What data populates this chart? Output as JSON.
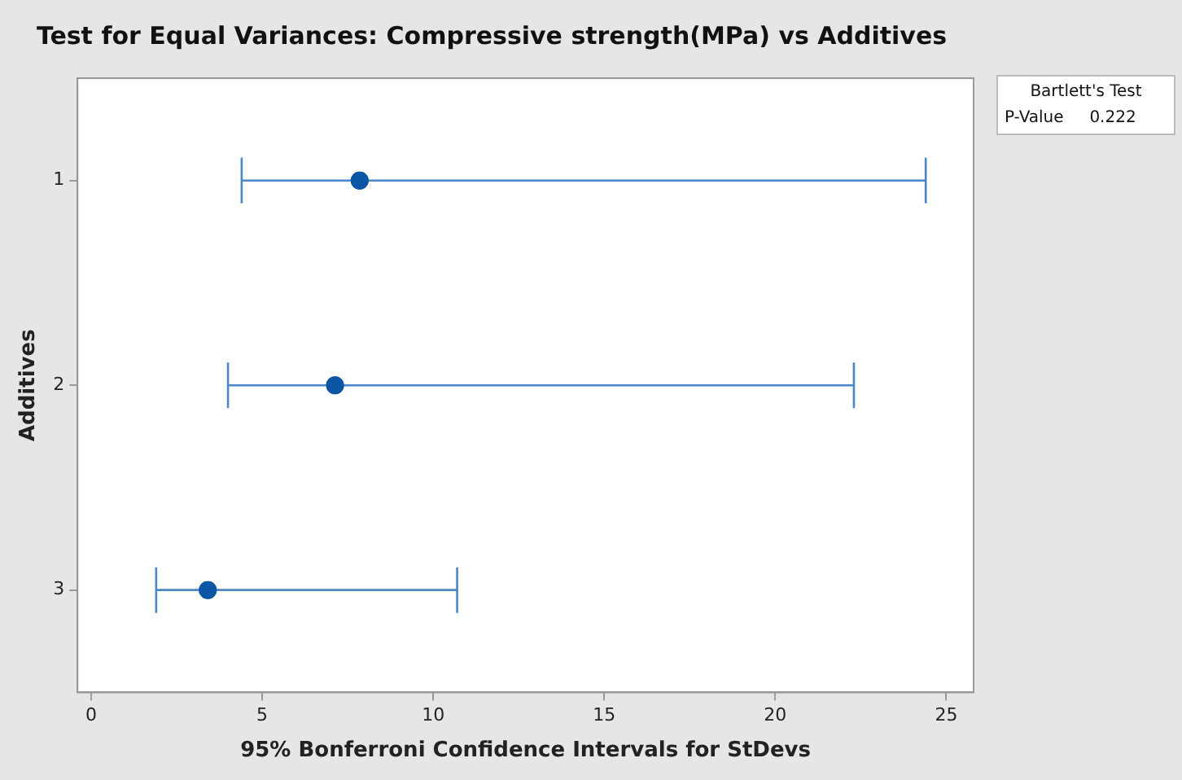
{
  "chart_data": {
    "type": "scatter",
    "orientation": "horizontal",
    "title": "Test for Equal Variances: Compressive strength(MPa) vs Additives",
    "xlabel": "95% Bonferroni Confidence Intervals for StDevs",
    "ylabel": "Additives",
    "categories": [
      "1",
      "2",
      "3"
    ],
    "series": [
      {
        "color": "#0a56a5",
        "values": [
          7.85,
          7.13,
          3.41
        ],
        "errors": [
          [
            4.4,
            24.4
          ],
          [
            4.0,
            22.3
          ],
          [
            1.9,
            10.7
          ]
        ]
      }
    ],
    "xlim": [
      -0.4,
      25.8
    ],
    "xticks": [
      0,
      5,
      10,
      15,
      20,
      25
    ],
    "marker": "circle",
    "grid": false,
    "legend": false,
    "annotations": [
      "Bartlett's Test",
      "P-Value     0.222"
    ]
  }
}
